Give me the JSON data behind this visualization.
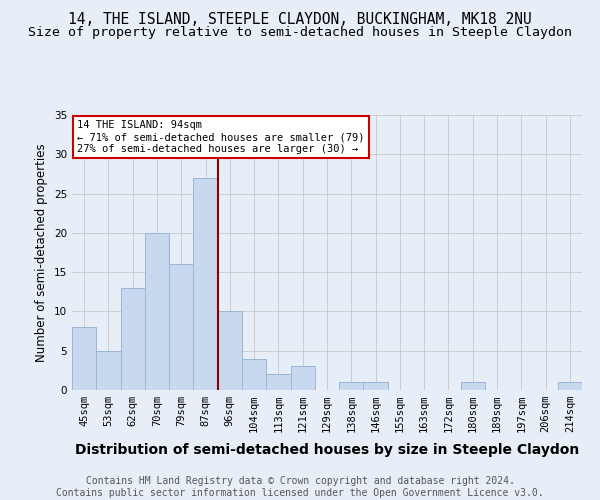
{
  "title": "14, THE ISLAND, STEEPLE CLAYDON, BUCKINGHAM, MK18 2NU",
  "subtitle": "Size of property relative to semi-detached houses in Steeple Claydon",
  "xlabel": "Distribution of semi-detached houses by size in Steeple Claydon",
  "ylabel": "Number of semi-detached properties",
  "footer": "Contains HM Land Registry data © Crown copyright and database right 2024.\nContains public sector information licensed under the Open Government Licence v3.0.",
  "categories": [
    "45sqm",
    "53sqm",
    "62sqm",
    "70sqm",
    "79sqm",
    "87sqm",
    "96sqm",
    "104sqm",
    "113sqm",
    "121sqm",
    "129sqm",
    "138sqm",
    "146sqm",
    "155sqm",
    "163sqm",
    "172sqm",
    "180sqm",
    "189sqm",
    "197sqm",
    "206sqm",
    "214sqm"
  ],
  "values": [
    8,
    5,
    13,
    20,
    16,
    27,
    10,
    4,
    2,
    3,
    0,
    1,
    1,
    0,
    0,
    0,
    1,
    0,
    0,
    0,
    1
  ],
  "bar_color": "#c8d8ee",
  "bar_edge_color": "#9ab5d5",
  "vline_index": 6,
  "vline_color": "#8b0000",
  "annotation_title": "14 THE ISLAND: 94sqm",
  "annotation_line1": "← 71% of semi-detached houses are smaller (79)",
  "annotation_line2": "27% of semi-detached houses are larger (30) →",
  "annotation_box_color": "#ffffff",
  "annotation_box_edge": "#cc0000",
  "ylim": [
    0,
    35
  ],
  "yticks": [
    0,
    5,
    10,
    15,
    20,
    25,
    30,
    35
  ],
  "grid_color": "#c8c8c8",
  "background_color": "#e8eef8",
  "title_fontsize": 10.5,
  "subtitle_fontsize": 9.5,
  "xlabel_fontsize": 10,
  "ylabel_fontsize": 8.5,
  "tick_fontsize": 7.5,
  "footer_fontsize": 7,
  "annotation_fontsize": 7.5
}
